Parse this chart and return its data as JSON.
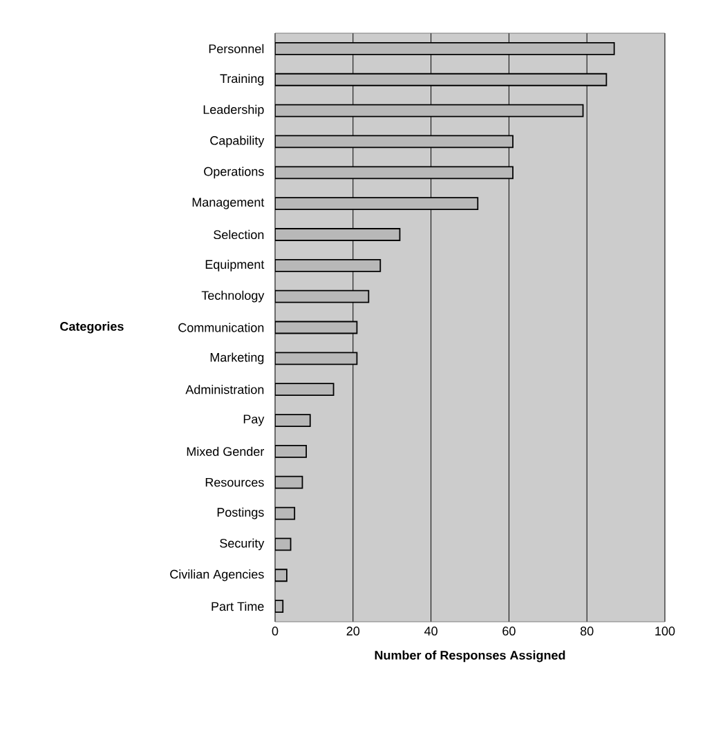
{
  "chart_data": {
    "type": "bar",
    "orientation": "horizontal",
    "xlabel": "Number of Responses Assigned",
    "ylabel": "Categories",
    "categories": [
      "Personnel",
      "Training",
      "Leadership",
      "Capability",
      "Operations",
      "Management",
      "Selection",
      "Equipment",
      "Technology",
      "Communication",
      "Marketing",
      "Administration",
      "Pay",
      "Mixed Gender",
      "Resources",
      "Postings",
      "Security",
      "Civilian Agencies",
      "Part Time"
    ],
    "values": [
      87,
      85,
      79,
      61,
      61,
      52,
      32,
      27,
      24,
      21,
      21,
      15,
      9,
      8,
      7,
      5,
      4,
      3,
      2
    ],
    "color": "#b8b8b8",
    "xlim": [
      0,
      100
    ],
    "xticks": [
      0,
      20,
      40,
      60,
      80,
      100
    ],
    "grid": "x"
  }
}
